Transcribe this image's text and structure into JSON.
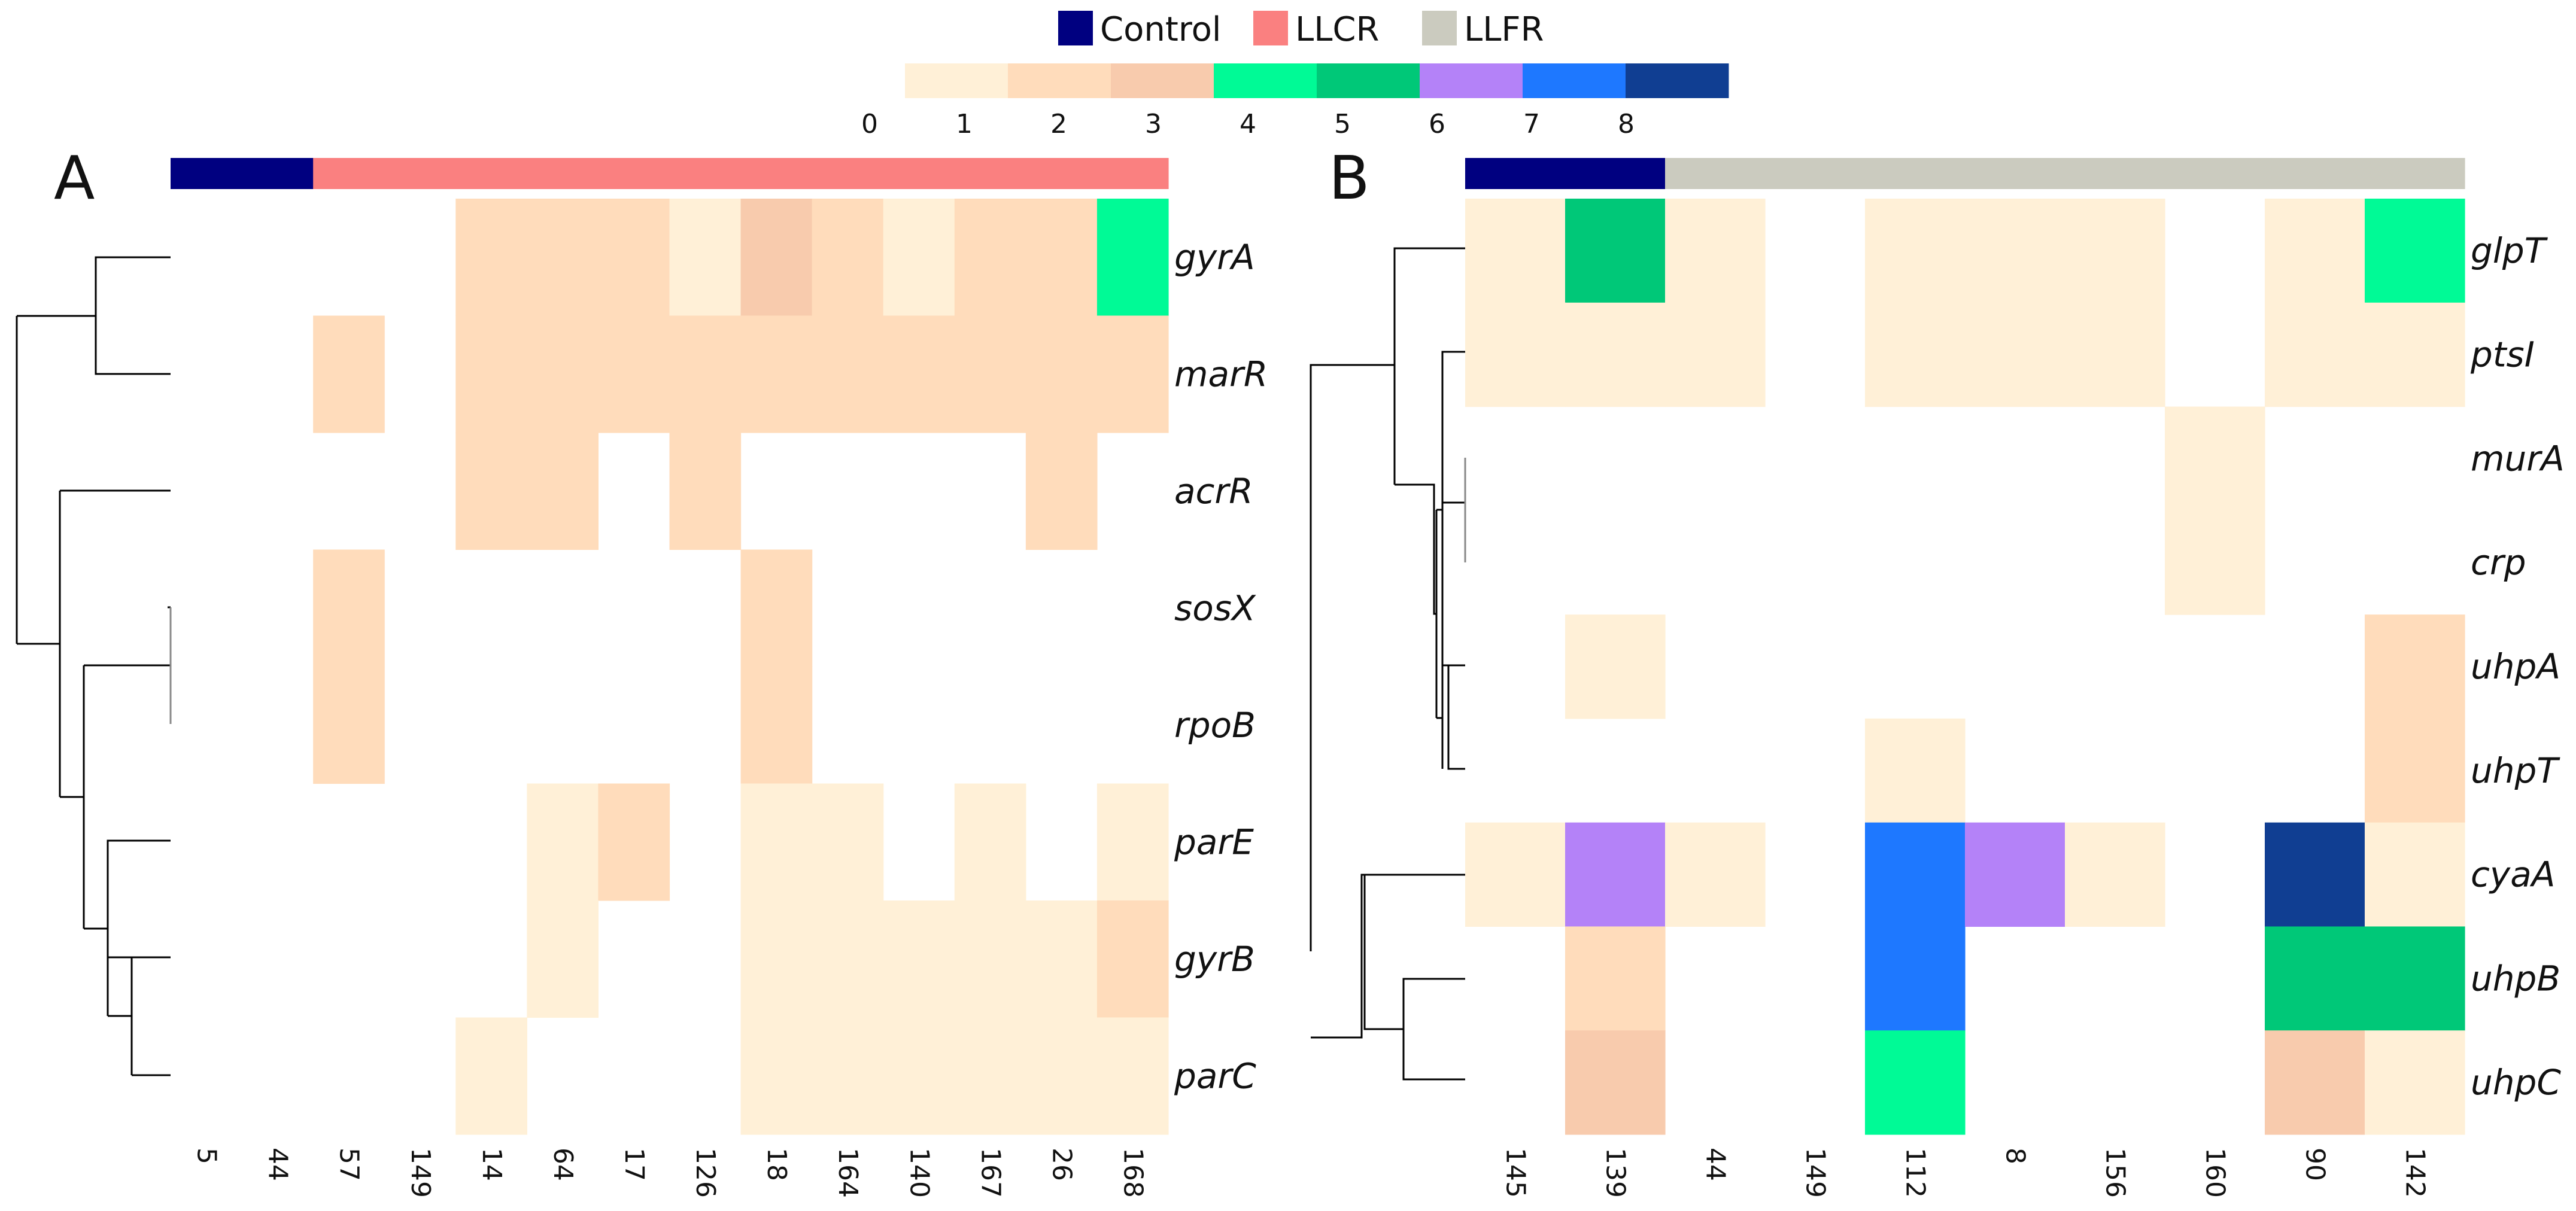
{
  "legend": {
    "groups": [
      {
        "name": "Control",
        "color": "#000080"
      },
      {
        "name": "LLCR",
        "color": "#fa8080"
      },
      {
        "name": "LLFR",
        "color": "#cbcbbf"
      }
    ],
    "scale_colors": [
      "#ffffff",
      "#fff0d7",
      "#ffdcbb",
      "#f8cbad",
      "#00fa96",
      "#00c878",
      "#b482f8",
      "#1e78ff",
      "#103e92"
    ],
    "scale_ticks": [
      "0",
      "1",
      "2",
      "3",
      "4",
      "5",
      "6",
      "7",
      "8"
    ]
  },
  "chart_data": [
    {
      "type": "heatmap",
      "panel": "A",
      "columns": [
        "5",
        "44",
        "57",
        "149",
        "14",
        "64",
        "17",
        "126",
        "18",
        "164",
        "140",
        "167",
        "26",
        "168"
      ],
      "column_groups": [
        "Control",
        "Control",
        "LLCR",
        "LLCR",
        "LLCR",
        "LLCR",
        "LLCR",
        "LLCR",
        "LLCR",
        "LLCR",
        "LLCR",
        "LLCR",
        "LLCR",
        "LLCR"
      ],
      "rows": [
        "gyrA",
        "marR",
        "acrR",
        "sosX",
        "rpoB",
        "parE",
        "gyrB",
        "parC"
      ],
      "values": [
        [
          0,
          0,
          0,
          0,
          2,
          2,
          2,
          1,
          3,
          2,
          1,
          2,
          2,
          4
        ],
        [
          0,
          0,
          2,
          0,
          2,
          2,
          2,
          2,
          2,
          2,
          2,
          2,
          2,
          2
        ],
        [
          0,
          0,
          0,
          0,
          2,
          2,
          0,
          2,
          0,
          0,
          0,
          0,
          2,
          0
        ],
        [
          0,
          0,
          2,
          0,
          0,
          0,
          0,
          0,
          2,
          0,
          0,
          0,
          0,
          0
        ],
        [
          0,
          0,
          2,
          0,
          0,
          0,
          0,
          0,
          2,
          0,
          0,
          0,
          0,
          0
        ],
        [
          0,
          0,
          0,
          0,
          0,
          1,
          2,
          0,
          1,
          1,
          0,
          1,
          0,
          1
        ],
        [
          0,
          0,
          0,
          0,
          0,
          1,
          0,
          0,
          1,
          1,
          1,
          1,
          1,
          2
        ],
        [
          0,
          0,
          0,
          0,
          1,
          0,
          0,
          0,
          1,
          1,
          1,
          1,
          1,
          1
        ]
      ]
    },
    {
      "type": "heatmap",
      "panel": "B",
      "columns": [
        "145",
        "139",
        "44",
        "149",
        "112",
        "8",
        "156",
        "160",
        "90",
        "142"
      ],
      "column_groups": [
        "Control",
        "Control",
        "LLFR",
        "LLFR",
        "LLFR",
        "LLFR",
        "LLFR",
        "LLFR",
        "LLFR",
        "LLFR"
      ],
      "rows": [
        "glpT",
        "ptsI",
        "murA",
        "crp",
        "uhpA",
        "uhpT",
        "cyaA",
        "uhpB",
        "uhpC"
      ],
      "values": [
        [
          1,
          5,
          1,
          0,
          1,
          1,
          1,
          0,
          1,
          4
        ],
        [
          1,
          1,
          1,
          0,
          1,
          1,
          1,
          0,
          1,
          1
        ],
        [
          0,
          0,
          0,
          0,
          0,
          0,
          0,
          1,
          0,
          0
        ],
        [
          0,
          0,
          0,
          0,
          0,
          0,
          0,
          1,
          0,
          0
        ],
        [
          0,
          1,
          0,
          0,
          0,
          0,
          0,
          0,
          0,
          2
        ],
        [
          0,
          0,
          0,
          0,
          1,
          0,
          0,
          0,
          0,
          2
        ],
        [
          1,
          6,
          1,
          0,
          7,
          6,
          1,
          0,
          8,
          1
        ],
        [
          0,
          2,
          0,
          0,
          7,
          0,
          0,
          0,
          5,
          5
        ],
        [
          0,
          3,
          0,
          0,
          4,
          0,
          0,
          0,
          3,
          1
        ]
      ]
    }
  ]
}
